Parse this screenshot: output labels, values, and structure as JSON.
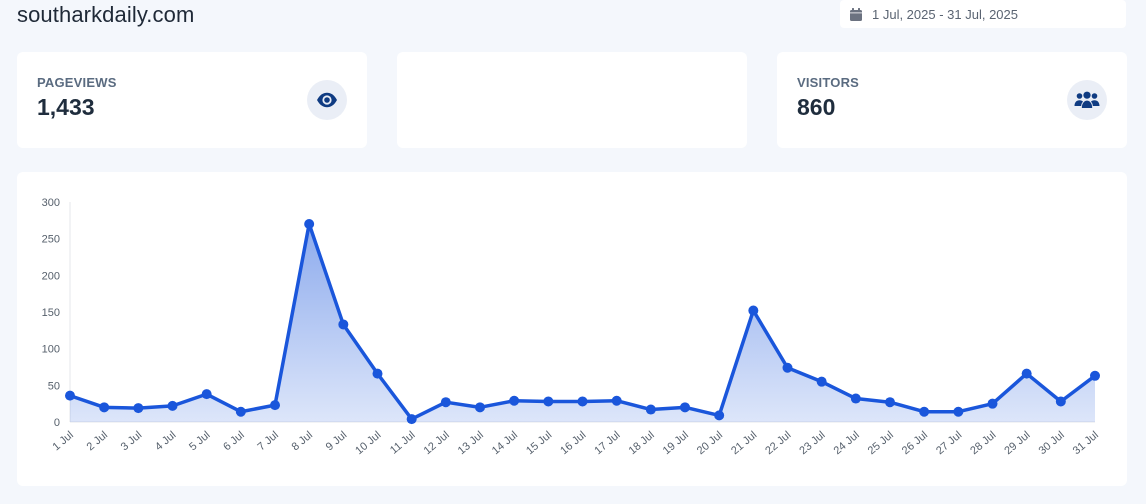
{
  "header": {
    "site_title": "southarkdaily.com",
    "date_range": "1 Jul, 2025 - 31 Jul, 2025",
    "calendar_icon": "calendar-icon"
  },
  "cards": {
    "pageviews": {
      "label": "PAGEVIEWS",
      "value": "1,433",
      "icon": "eye-icon"
    },
    "visitors": {
      "label": "VISITORS",
      "value": "860",
      "icon": "users-icon"
    }
  },
  "colors": {
    "accent": "#1a56db",
    "card_icon_bg": "#eaeef6",
    "page_bg": "#f4f7fc"
  },
  "chart_data": {
    "type": "area",
    "x": [
      "1 Jul",
      "2 Jul",
      "3 Jul",
      "4 Jul",
      "5 Jul",
      "6 Jul",
      "7 Jul",
      "8 Jul",
      "9 Jul",
      "10 Jul",
      "11 Jul",
      "12 Jul",
      "13 Jul",
      "14 Jul",
      "15 Jul",
      "16 Jul",
      "17 Jul",
      "18 Jul",
      "19 Jul",
      "20 Jul",
      "21 Jul",
      "22 Jul",
      "23 Jul",
      "24 Jul",
      "25 Jul",
      "26 Jul",
      "27 Jul",
      "28 Jul",
      "29 Jul",
      "30 Jul",
      "31 Jul"
    ],
    "series": [
      {
        "values": [
          36,
          20,
          19,
          22,
          38,
          14,
          23,
          270,
          133,
          66,
          4,
          27,
          20,
          29,
          28,
          28,
          29,
          17,
          20,
          9,
          152,
          74,
          55,
          32,
          27,
          14,
          14,
          25,
          66,
          28,
          63
        ]
      }
    ],
    "yticks": [
      "0",
      "50",
      "100",
      "150",
      "200",
      "250",
      "300"
    ],
    "ylim": [
      0,
      300
    ],
    "grid": false,
    "legend": "none"
  }
}
